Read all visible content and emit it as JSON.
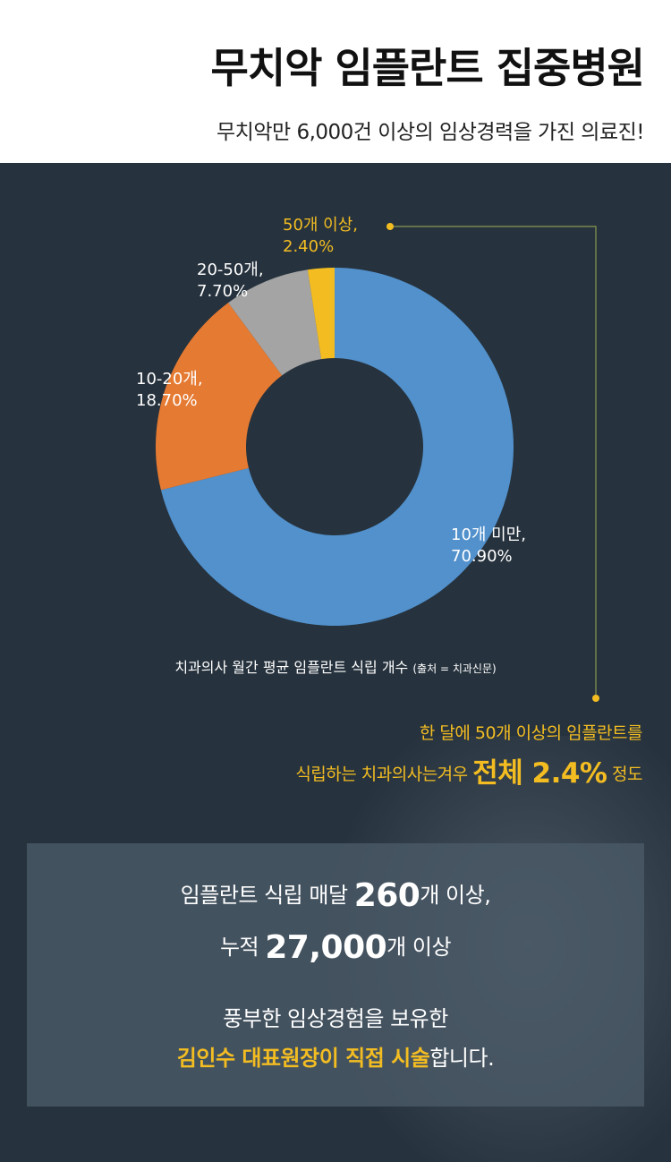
{
  "header": {
    "title": "무치악 임플란트 집중병원",
    "subtitle": "무치악만 6,000건 이상의 임상경력을 가진 의료진!"
  },
  "chart_data": {
    "type": "pie",
    "categories": [
      "10개 미만",
      "10-20개",
      "20-50개",
      "50개 이상"
    ],
    "values": [
      70.9,
      18.7,
      7.7,
      2.4
    ],
    "labels": [
      {
        "name": "10개 미만,",
        "value": "70.90%"
      },
      {
        "name": "10-20개,",
        "value": "18.70%"
      },
      {
        "name": "20-50개,",
        "value": "7.70%"
      },
      {
        "name": "50개 이상,",
        "value": "2.40%"
      }
    ],
    "colors": [
      "#5291cc",
      "#e57a32",
      "#a4a4a4",
      "#f3bd22"
    ],
    "caption": "치과의사 월간 평균 임플란트 식립 개수",
    "source": "(출처 = 치과신문)"
  },
  "highlight": {
    "line1": "한 달에 50개 이상의 임플란트를",
    "line2_pre": "식립하는 치과의사는겨우 ",
    "line2_big": "전체 2.4%",
    "line2_post": " 정도"
  },
  "stats": {
    "line1_pre": "임플란트 식립 매달 ",
    "line1_num": "260",
    "line1_post": "개 이상,",
    "line2_pre": "누적 ",
    "line2_num": "27,000",
    "line2_post": "개 이상",
    "line3": "풍부한 임상경험을 보유한",
    "line4_highlight": "김인수 대표원장이 직접 시술",
    "line4_post": "합니다."
  },
  "colors": {
    "background_dark": "#26323d",
    "accent": "#f3bd22",
    "connector": "#8a9a52"
  }
}
